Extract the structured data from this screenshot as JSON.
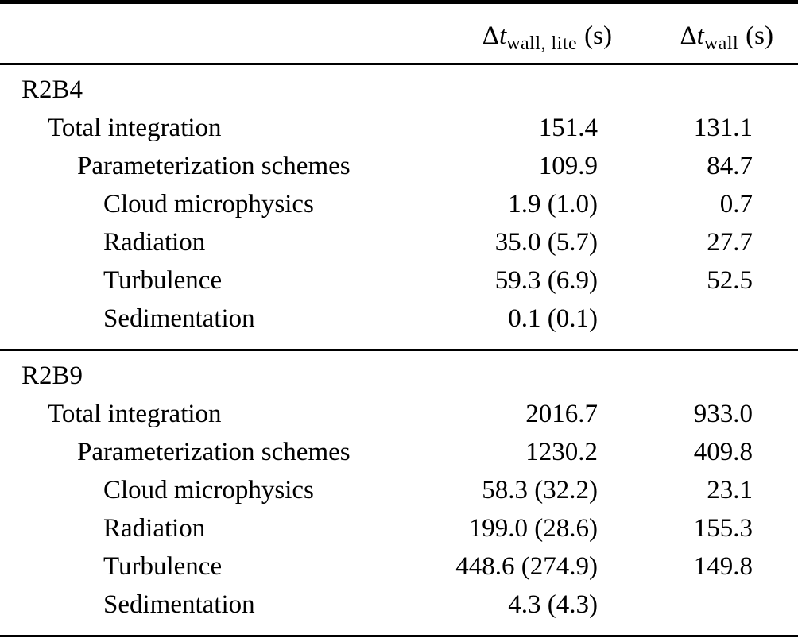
{
  "table": {
    "header": {
      "col_lite": {
        "delta": "Δ",
        "var": "t",
        "sub": "wall, lite",
        "unit": "(s)"
      },
      "col_full": {
        "delta": "Δ",
        "var": "t",
        "sub": "wall",
        "unit": "(s)"
      }
    },
    "sections": [
      {
        "name": "R2B4",
        "rows": [
          {
            "label": "Total integration",
            "lite": "151.4",
            "full": "131.1"
          },
          {
            "label": "Parameterization schemes",
            "lite": "109.9",
            "full": "84.7"
          },
          {
            "label": "Cloud microphysics",
            "lite": "1.9 (1.0)",
            "full": "0.7"
          },
          {
            "label": "Radiation",
            "lite": "35.0 (5.7)",
            "full": "27.7"
          },
          {
            "label": "Turbulence",
            "lite": "59.3 (6.9)",
            "full": "52.5"
          },
          {
            "label": "Sedimentation",
            "lite": "0.1 (0.1)",
            "full": ""
          }
        ]
      },
      {
        "name": "R2B9",
        "rows": [
          {
            "label": "Total integration",
            "lite": "2016.7",
            "full": "933.0"
          },
          {
            "label": "Parameterization schemes",
            "lite": "1230.2",
            "full": "409.8"
          },
          {
            "label": "Cloud microphysics",
            "lite": "58.3 (32.2)",
            "full": "23.1"
          },
          {
            "label": "Radiation",
            "lite": "199.0 (28.6)",
            "full": "155.3"
          },
          {
            "label": "Turbulence",
            "lite": "448.6 (274.9)",
            "full": "149.8"
          },
          {
            "label": "Sedimentation",
            "lite": "4.3 (4.3)",
            "full": ""
          }
        ]
      }
    ],
    "colors": {
      "text": "#000000",
      "background": "#ffffff",
      "rule": "#000000"
    }
  }
}
